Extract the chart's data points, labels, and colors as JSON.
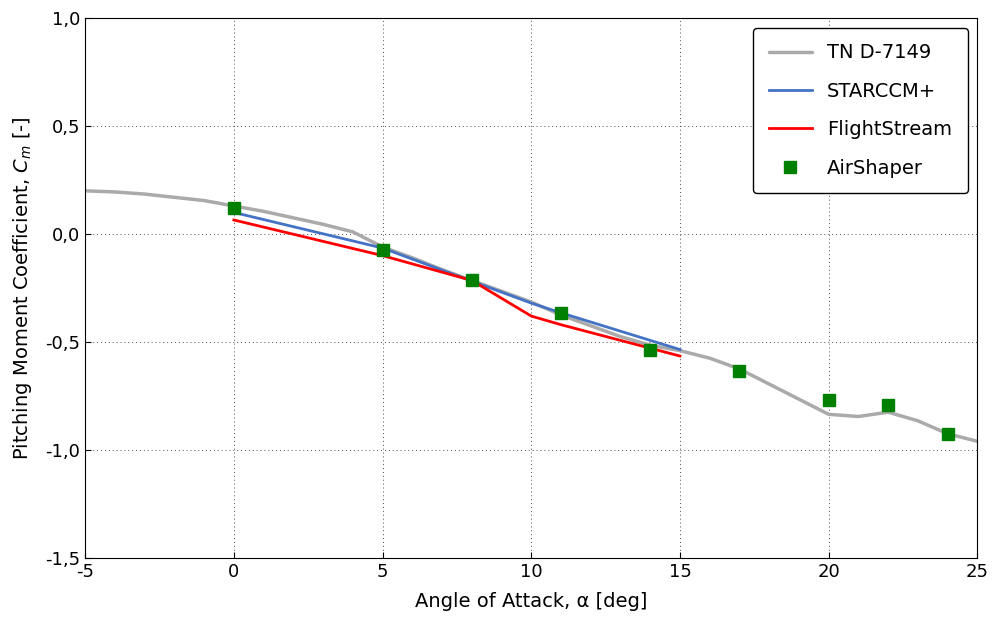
{
  "xlabel": "Angle of Attack, α [deg]",
  "ylabel": "Pitching Moment Coefficient, C_m [-]",
  "xlim": [
    -5,
    25
  ],
  "ylim": [
    -1.5,
    1.0
  ],
  "xticks": [
    -5,
    0,
    5,
    10,
    15,
    20,
    25
  ],
  "yticks": [
    -1.5,
    -1.0,
    -0.5,
    0.0,
    0.5,
    1.0
  ],
  "tnd7149_x": [
    -5,
    -4,
    -3,
    -2,
    -1,
    0,
    1,
    2,
    3,
    4,
    5,
    6,
    7,
    8,
    9,
    10,
    11,
    12,
    13,
    14,
    15,
    16,
    17,
    18,
    19,
    20,
    21,
    22,
    23,
    24,
    25
  ],
  "tnd7149_y": [
    0.2,
    0.195,
    0.185,
    0.17,
    0.155,
    0.13,
    0.105,
    0.075,
    0.045,
    0.01,
    -0.06,
    -0.11,
    -0.165,
    -0.215,
    -0.265,
    -0.315,
    -0.375,
    -0.425,
    -0.475,
    -0.515,
    -0.54,
    -0.575,
    -0.625,
    -0.695,
    -0.765,
    -0.835,
    -0.845,
    -0.825,
    -0.865,
    -0.925,
    -0.96
  ],
  "starccm_x": [
    0,
    5,
    10,
    11,
    15
  ],
  "starccm_y": [
    0.1,
    -0.065,
    -0.32,
    -0.365,
    -0.535
  ],
  "flightstream_x": [
    0,
    5,
    8,
    10,
    11,
    15
  ],
  "flightstream_y": [
    0.065,
    -0.1,
    -0.215,
    -0.38,
    -0.42,
    -0.565
  ],
  "airshaper_x": [
    0,
    5,
    8,
    11,
    14,
    17,
    20,
    22,
    24
  ],
  "airshaper_y": [
    0.12,
    -0.075,
    -0.215,
    -0.365,
    -0.535,
    -0.635,
    -0.77,
    -0.79,
    -0.925
  ],
  "tnd7149_color": "#aaaaaa",
  "starccm_color": "#4472c4",
  "flightstream_color": "#ff0000",
  "airshaper_color": "#008000",
  "tnd7149_lw": 2.5,
  "starccm_lw": 2.0,
  "flightstream_lw": 2.0,
  "airshaper_ms": 9,
  "legend_loc": "upper right",
  "font_size": 14,
  "tick_font_size": 13
}
